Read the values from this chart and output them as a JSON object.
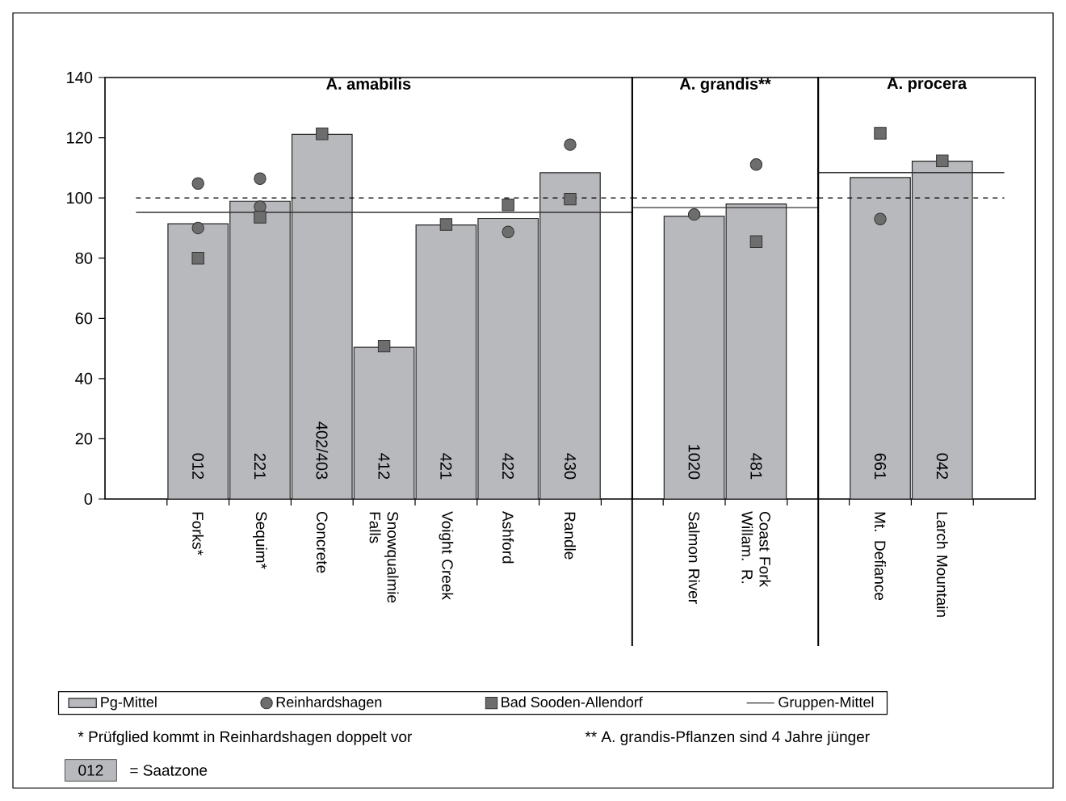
{
  "chart_data": [
    {
      "type": "bar",
      "title": "A. amabilis",
      "categories": [
        "Forks*",
        "Sequim*",
        "Concrete",
        "Snowqualmie Falls",
        "Voight Creek",
        "Ashford",
        "Randle"
      ],
      "series": [
        {
          "name": "Pg-Mittel",
          "color": "#b8b9bd",
          "values": [
            91.4,
            98.9,
            121.1,
            50.4,
            91.0,
            93.2,
            108.4
          ]
        },
        {
          "name": "Reinhardshagen",
          "type": "scatter",
          "marker": "circle",
          "color": "#6d6d6d",
          "x": [
            "Forks*",
            "Forks*",
            "Sequim*",
            "Sequim*",
            "Ashford",
            "Randle"
          ],
          "values": [
            104.8,
            90.0,
            106.4,
            97.1,
            88.7,
            117.7
          ]
        },
        {
          "name": "Bad Sooden-Allendorf",
          "type": "scatter",
          "marker": "square",
          "color": "#6d6d6d",
          "x": [
            "Forks*",
            "Sequim*",
            "Concrete",
            "Snowqualmie Falls",
            "Voight Creek",
            "Ashford",
            "Randle"
          ],
          "values": [
            80.0,
            93.6,
            121.3,
            50.8,
            91.2,
            97.7,
            99.6
          ]
        }
      ],
      "ylim": [
        0,
        140
      ],
      "yticks": [
        0,
        20,
        40,
        60,
        80,
        100,
        120,
        140
      ],
      "ref_lines": [
        {
          "axis": "y",
          "value": 100,
          "line_style": "dashed",
          "color": "#000000"
        },
        {
          "axis": "y",
          "value": 95.2,
          "label": "Gruppen-Mittel",
          "color": "#333333"
        }
      ],
      "legend": "bottom",
      "annotations": [
        "*  Prüfglied kommt in Reinhardshagen doppelt vor",
        "** A. grandis-Pflanzen sind 4 Jahre jünger",
        "012",
        "= Saatzone",
        "012",
        "221",
        "402/403",
        "412",
        "421",
        "422",
        "430"
      ]
    },
    {
      "type": "bar",
      "title": "A. grandis**",
      "categories": [
        "Salmon River",
        "Coast Fork Willam. R."
      ],
      "series": [
        {
          "color": "#b8b9bd",
          "values": [
            93.9,
            98.0
          ]
        },
        {
          "type": "scatter",
          "marker": "circle",
          "color": "#6d6d6d",
          "x": [
            "Salmon River",
            "Coast Fork Willam. R."
          ],
          "values": [
            94.5,
            111.1
          ]
        },
        {
          "type": "scatter",
          "marker": "square",
          "color": "#6d6d6d",
          "x": [
            "Coast Fork Willam. R."
          ],
          "values": [
            85.5
          ]
        }
      ],
      "ylim": [
        0,
        140
      ],
      "tick_labels": "x",
      "ref_lines": [
        {
          "axis": "y",
          "value": 100,
          "line_style": "dashed",
          "color": "#000000"
        },
        {
          "axis": "y",
          "value": 96.8,
          "color": "#333333"
        }
      ],
      "annotations": [
        "1020",
        "481"
      ]
    },
    {
      "type": "bar",
      "title": "A. procera",
      "categories": [
        "Mt. Defiance",
        "Larch Mountain"
      ],
      "series": [
        {
          "color": "#b8b9bd",
          "values": [
            106.8,
            112.2
          ]
        },
        {
          "type": "scatter",
          "marker": "circle",
          "color": "#6d6d6d",
          "x": [
            "Mt. Defiance"
          ],
          "values": [
            93.0
          ]
        },
        {
          "type": "scatter",
          "marker": "square",
          "color": "#6d6d6d",
          "x": [
            "Mt. Defiance",
            "Larch Mountain"
          ],
          "values": [
            121.5,
            112.3
          ]
        }
      ],
      "ylim": [
        0,
        140
      ],
      "tick_labels": "x",
      "ref_lines": [
        {
          "axis": "y",
          "value": 100,
          "line_style": "dashed",
          "color": "#000000"
        },
        {
          "axis": "y",
          "value": 108.4,
          "color": "#333333"
        }
      ],
      "annotations": [
        "661",
        "042"
      ]
    }
  ]
}
